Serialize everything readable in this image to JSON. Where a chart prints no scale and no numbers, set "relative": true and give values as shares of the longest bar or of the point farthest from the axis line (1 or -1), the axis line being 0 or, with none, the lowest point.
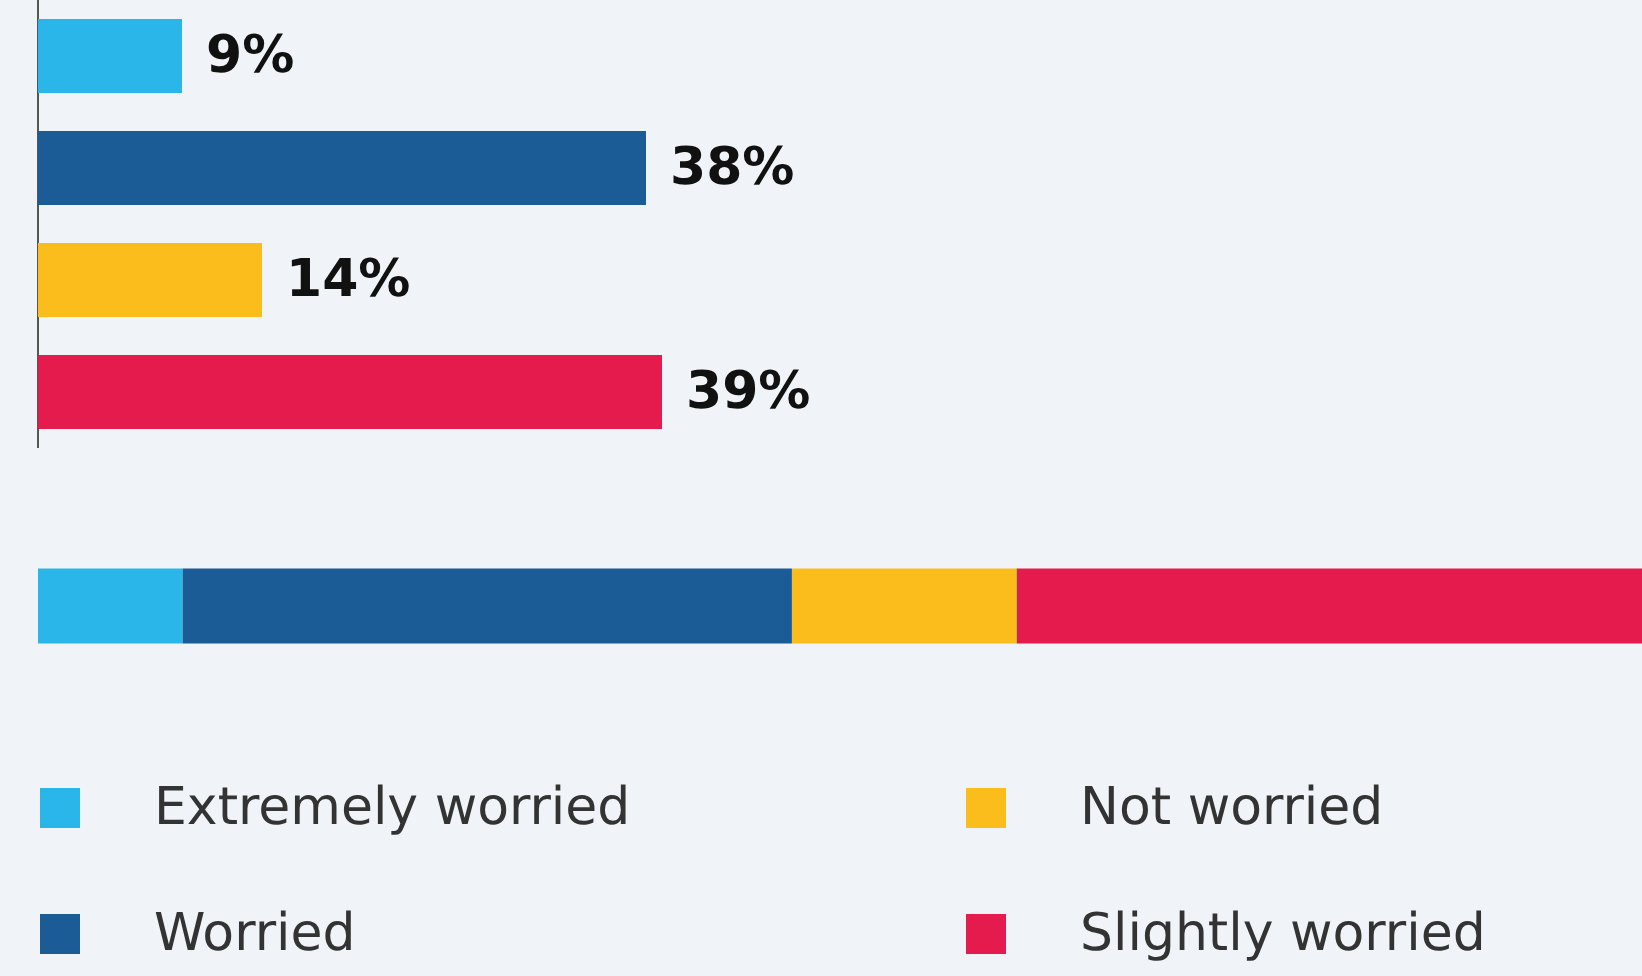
{
  "chart_data": [
    {
      "type": "bar",
      "orientation": "horizontal",
      "categories": [
        null,
        null,
        null,
        null
      ],
      "values": [
        9,
        38,
        14,
        39
      ],
      "colors": [
        "#2bb6e9",
        "#1b5c97",
        "#fbbd1b",
        "#e51b4d"
      ],
      "value_labels": [
        "9%",
        "38%",
        "14%",
        "39%"
      ],
      "tick_labels": false,
      "grid": false
    },
    {
      "type": "bar",
      "orientation": "horizontal",
      "stacked": true,
      "relative": true,
      "categories": [
        null
      ],
      "tick_labels": false,
      "grid": false,
      "legend": "bottom",
      "series": [
        {
          "name": "Extremely worried",
          "color": "#2bb6e9",
          "values": [
            0.09
          ]
        },
        {
          "name": "Worried",
          "color": "#1b5c97",
          "values": [
            0.38
          ]
        },
        {
          "name": "Not worried",
          "color": "#fbbd1b",
          "values": [
            0.14
          ]
        },
        {
          "name": "Slightly worried",
          "color": "#e51b4d",
          "values": [
            0.39
          ]
        }
      ]
    }
  ]
}
